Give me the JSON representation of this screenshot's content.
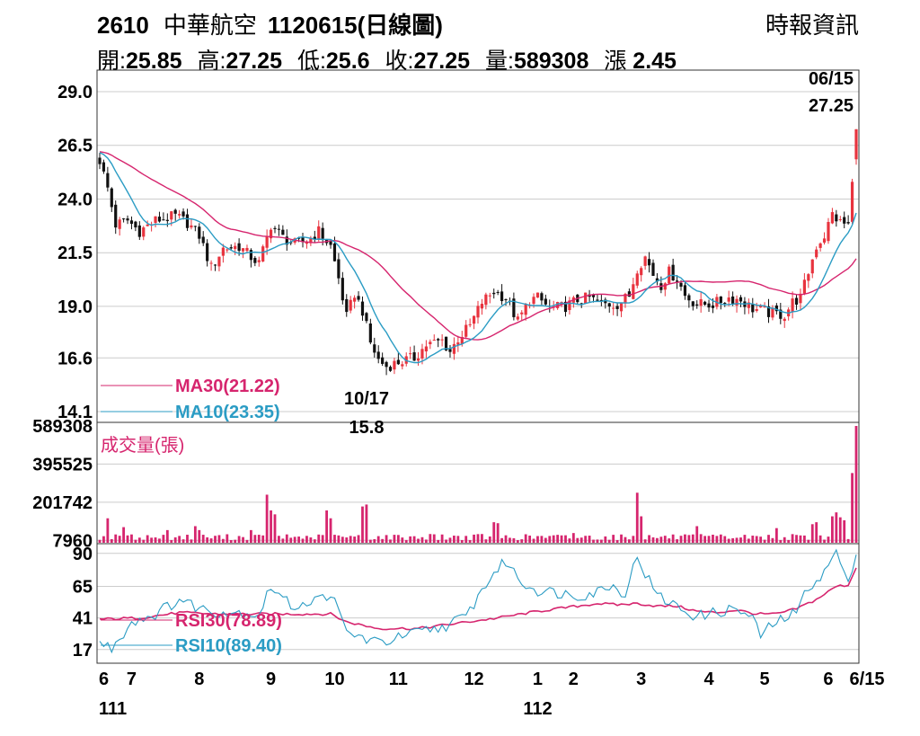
{
  "header": {
    "code": "2610",
    "name": "中華航空",
    "date": "1120615(日線圖)",
    "source": "時報資訊",
    "open_label": "開:",
    "open": "25.85",
    "high_label": "高:",
    "high": "27.25",
    "low_label": "低:",
    "low": "25.6",
    "close_label": "收:",
    "close": "27.25",
    "volume_label": "量:",
    "volume": "589308",
    "change_label": "漲",
    "change": "2.45"
  },
  "annotations": {
    "last_date": "06/15",
    "last_price": "27.25",
    "low_date": "10/17",
    "low_price": "15.8"
  },
  "legend": {
    "ma30": "MA30(21.22)",
    "ma10": "MA10(23.35)",
    "volume": "成交量(張)",
    "rsi30": "RSI30(78.89)",
    "rsi10": "RSI10(89.40)"
  },
  "colors": {
    "up": "#e8333e",
    "down": "#111111",
    "ma30": "#d6256e",
    "ma10": "#2b9cc4",
    "volume": "#d6256e",
    "grid": "#cccccc",
    "axis": "#333333"
  },
  "chart_data": [
    {
      "type": "candlestick",
      "title": "2610 中華航空 1120615(日線圖)",
      "ylim": [
        14.1,
        29.0
      ],
      "y_ticks": [
        "29.0",
        "26.5",
        "24.0",
        "21.5",
        "19.0",
        "16.6",
        "14.1"
      ],
      "y_tick_values": [
        29.0,
        26.5,
        24.0,
        21.5,
        19.0,
        16.6,
        14.1
      ],
      "x_ticks": [
        "6",
        "7",
        "8",
        "9",
        "10",
        "11",
        "12",
        "1",
        "2",
        "3",
        "4",
        "5",
        "6",
        "6/15"
      ],
      "x_tick_days": [
        0,
        8,
        25,
        43,
        59,
        75,
        94,
        110,
        119,
        136,
        153,
        167,
        183,
        190
      ],
      "x_year_labels": [
        "111",
        "112"
      ],
      "x_year_days": [
        0,
        110
      ],
      "close_anchors": [
        [
          0,
          25.8
        ],
        [
          2,
          24.5
        ],
        [
          4,
          22.8
        ],
        [
          7,
          23.0
        ],
        [
          10,
          22.5
        ],
        [
          14,
          23.0
        ],
        [
          19,
          23.2
        ],
        [
          22,
          22.9
        ],
        [
          25,
          22.3
        ],
        [
          28,
          20.8
        ],
        [
          31,
          21.7
        ],
        [
          35,
          21.8
        ],
        [
          38,
          21.3
        ],
        [
          40,
          21.0
        ],
        [
          43,
          22.8
        ],
        [
          46,
          22.2
        ],
        [
          49,
          21.9
        ],
        [
          51,
          22.0
        ],
        [
          53,
          22.2
        ],
        [
          55,
          22.5
        ],
        [
          58,
          21.8
        ],
        [
          60,
          20.3
        ],
        [
          62,
          18.5
        ],
        [
          64,
          19.6
        ],
        [
          66,
          18.8
        ],
        [
          68,
          17.3
        ],
        [
          70,
          16.5
        ],
        [
          72,
          16.2
        ],
        [
          75,
          16.4
        ],
        [
          79,
          16.6
        ],
        [
          82,
          17.2
        ],
        [
          86,
          17.4
        ],
        [
          88,
          16.9
        ],
        [
          90,
          17.5
        ],
        [
          93,
          18.1
        ],
        [
          96,
          19.2
        ],
        [
          99,
          19.7
        ],
        [
          102,
          19.4
        ],
        [
          105,
          18.3
        ],
        [
          108,
          19.3
        ],
        [
          110,
          19.4
        ],
        [
          113,
          18.9
        ],
        [
          117,
          19.0
        ],
        [
          120,
          19.3
        ],
        [
          123,
          19.4
        ],
        [
          126,
          19.1
        ],
        [
          130,
          19.1
        ],
        [
          133,
          19.5
        ],
        [
          135,
          20.8
        ],
        [
          137,
          21.3
        ],
        [
          139,
          20.5
        ],
        [
          141,
          20.0
        ],
        [
          143,
          20.6
        ],
        [
          145,
          20.3
        ],
        [
          147,
          19.5
        ],
        [
          150,
          19.1
        ],
        [
          154,
          19.1
        ],
        [
          158,
          19.4
        ],
        [
          161,
          19.3
        ],
        [
          164,
          18.9
        ],
        [
          168,
          18.7
        ],
        [
          172,
          18.6
        ],
        [
          174,
          19.2
        ],
        [
          176,
          19.4
        ],
        [
          178,
          20.6
        ],
        [
          180,
          21.8
        ],
        [
          182,
          22.3
        ],
        [
          184,
          23.3
        ],
        [
          186,
          22.9
        ],
        [
          188,
          22.8
        ],
        [
          189,
          24.8
        ],
        [
          190,
          27.25
        ]
      ],
      "last": {
        "open": 25.85,
        "high": 27.25,
        "low": 25.6,
        "close": 27.25
      },
      "period_low": 15.8,
      "ma30_last": 21.22,
      "ma10_last": 23.35
    },
    {
      "type": "bar",
      "title": "成交量(張)",
      "ylim": [
        0,
        589308
      ],
      "y_ticks": [
        "589308",
        "395525",
        "201742",
        "7960"
      ],
      "y_tick_values": [
        589308,
        395525,
        201742,
        7960
      ],
      "spikes": [
        [
          2,
          120000
        ],
        [
          6,
          75000
        ],
        [
          17,
          60000
        ],
        [
          24,
          80000
        ],
        [
          25,
          60000
        ],
        [
          38,
          60000
        ],
        [
          42,
          240000
        ],
        [
          43,
          160000
        ],
        [
          44,
          140000
        ],
        [
          57,
          160000
        ],
        [
          58,
          120000
        ],
        [
          66,
          180000
        ],
        [
          67,
          190000
        ],
        [
          83,
          40000
        ],
        [
          96,
          40000
        ],
        [
          99,
          100000
        ],
        [
          100,
          95000
        ],
        [
          119,
          45000
        ],
        [
          135,
          250000
        ],
        [
          136,
          130000
        ],
        [
          150,
          80000
        ],
        [
          170,
          70000
        ],
        [
          179,
          90000
        ],
        [
          180,
          100000
        ],
        [
          184,
          130000
        ],
        [
          185,
          150000
        ],
        [
          186,
          125000
        ],
        [
          187,
          110000
        ],
        [
          189,
          350000
        ],
        [
          190,
          589308
        ]
      ],
      "baseline": 22000
    },
    {
      "type": "line",
      "title": "RSI",
      "ylim": [
        8,
        96
      ],
      "y_ticks": [
        "90",
        "65",
        "41",
        "17"
      ],
      "y_tick_values": [
        90,
        65,
        41,
        17
      ],
      "series": [
        {
          "name": "RSI30(78.89)",
          "anchors": [
            [
              0,
              40
            ],
            [
              10,
              41
            ],
            [
              20,
              45
            ],
            [
              30,
              44
            ],
            [
              40,
              44
            ],
            [
              50,
              44
            ],
            [
              58,
              44
            ],
            [
              62,
              38
            ],
            [
              70,
              33
            ],
            [
              80,
              33
            ],
            [
              90,
              37
            ],
            [
              100,
              41
            ],
            [
              110,
              46
            ],
            [
              120,
              50
            ],
            [
              125,
              52
            ],
            [
              130,
              51
            ],
            [
              135,
              52
            ],
            [
              140,
              50
            ],
            [
              145,
              50
            ],
            [
              150,
              46
            ],
            [
              155,
              45
            ],
            [
              160,
              47
            ],
            [
              165,
              44
            ],
            [
              170,
              44
            ],
            [
              175,
              48
            ],
            [
              180,
              55
            ],
            [
              185,
              65
            ],
            [
              188,
              66
            ],
            [
              190,
              79
            ]
          ]
        },
        {
          "name": "RSI10(89.40)",
          "anchors": [
            [
              0,
              22
            ],
            [
              3,
              18
            ],
            [
              8,
              38
            ],
            [
              14,
              44
            ],
            [
              20,
              55
            ],
            [
              24,
              50
            ],
            [
              28,
              46
            ],
            [
              36,
              45
            ],
            [
              40,
              44
            ],
            [
              43,
              65
            ],
            [
              48,
              50
            ],
            [
              55,
              55
            ],
            [
              58,
              60
            ],
            [
              62,
              30
            ],
            [
              66,
              26
            ],
            [
              70,
              22
            ],
            [
              74,
              25
            ],
            [
              80,
              30
            ],
            [
              86,
              34
            ],
            [
              92,
              42
            ],
            [
              96,
              62
            ],
            [
              99,
              75
            ],
            [
              102,
              84
            ],
            [
              106,
              68
            ],
            [
              110,
              62
            ],
            [
              116,
              60
            ],
            [
              120,
              58
            ],
            [
              124,
              60
            ],
            [
              128,
              66
            ],
            [
              132,
              60
            ],
            [
              135,
              88
            ],
            [
              137,
              75
            ],
            [
              140,
              58
            ],
            [
              146,
              48
            ],
            [
              150,
              42
            ],
            [
              156,
              46
            ],
            [
              160,
              48
            ],
            [
              164,
              40
            ],
            [
              166,
              28
            ],
            [
              170,
              38
            ],
            [
              175,
              45
            ],
            [
              178,
              65
            ],
            [
              182,
              75
            ],
            [
              185,
              92
            ],
            [
              188,
              65
            ],
            [
              190,
              89
            ]
          ]
        }
      ]
    }
  ]
}
